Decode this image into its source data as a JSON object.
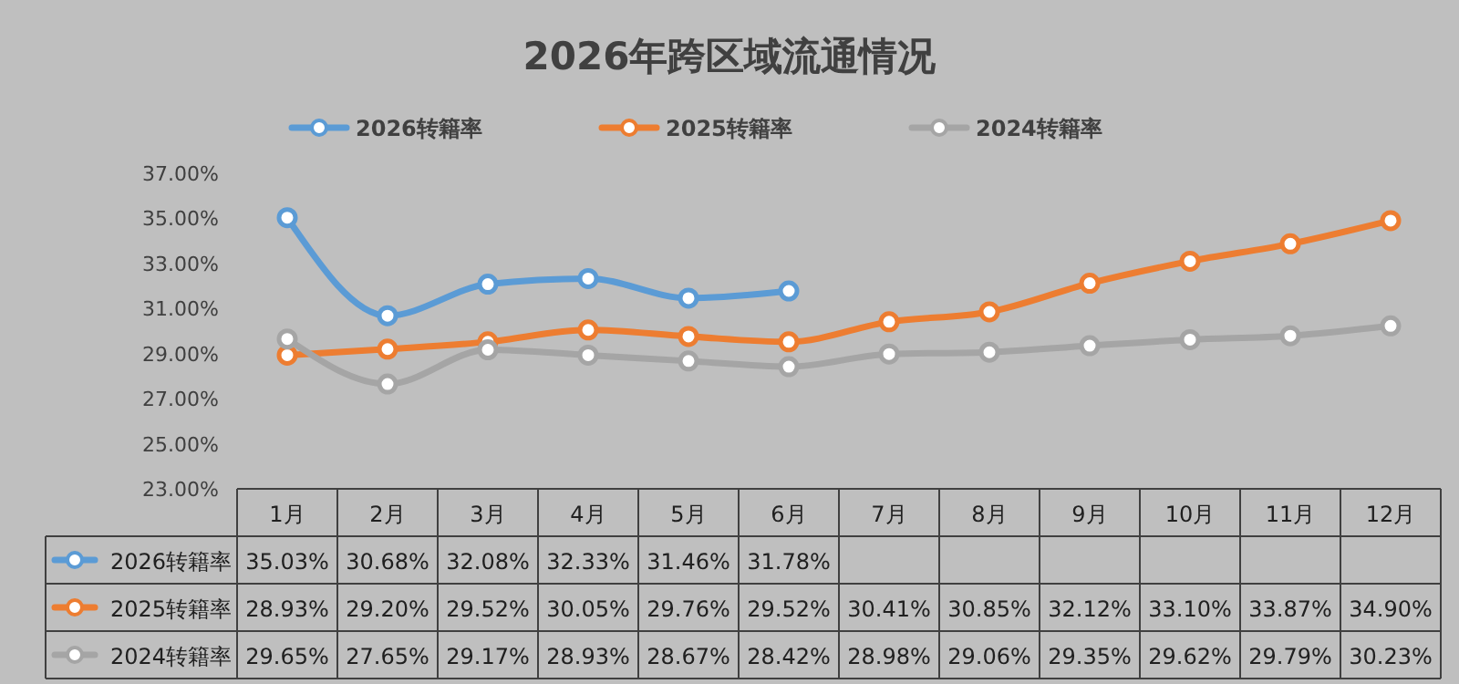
{
  "chart_data": {
    "type": "line",
    "title": "2026年跨区域流通情况",
    "categories": [
      "1月",
      "2月",
      "3月",
      "4月",
      "5月",
      "6月",
      "7月",
      "8月",
      "9月",
      "10月",
      "11月",
      "12月"
    ],
    "series": [
      {
        "name": "2026转籍率",
        "color": "#5b9bd5",
        "values": [
          35.03,
          30.68,
          32.08,
          32.33,
          31.46,
          31.78,
          null,
          null,
          null,
          null,
          null,
          null
        ],
        "value_labels": [
          "35.03%",
          "30.68%",
          "32.08%",
          "32.33%",
          "31.46%",
          "31.78%",
          null,
          null,
          null,
          null,
          null,
          null
        ]
      },
      {
        "name": "2025转籍率",
        "color": "#ed7d31",
        "values": [
          28.93,
          29.2,
          29.52,
          30.05,
          29.76,
          29.52,
          30.41,
          30.85,
          32.12,
          33.1,
          33.87,
          34.9
        ],
        "value_labels": [
          "28.93%",
          "29.20%",
          "29.52%",
          "30.05%",
          "29.76%",
          "29.52%",
          "30.41%",
          "30.85%",
          "32.12%",
          "33.10%",
          "33.87%",
          "34.90%"
        ]
      },
      {
        "name": "2024转籍率",
        "color": "#a5a5a5",
        "values": [
          29.65,
          27.65,
          29.17,
          28.93,
          28.67,
          28.42,
          28.98,
          29.06,
          29.35,
          29.62,
          29.79,
          30.23
        ],
        "value_labels": [
          "29.65%",
          "27.65%",
          "29.17%",
          "28.93%",
          "28.67%",
          "28.42%",
          "28.98%",
          "29.06%",
          "29.35%",
          "29.62%",
          "29.79%",
          "30.23%"
        ]
      }
    ],
    "ylim": [
      23,
      37
    ],
    "yticks": [
      {
        "value": 23,
        "label": "23.00%"
      },
      {
        "value": 25,
        "label": "25.00%"
      },
      {
        "value": 27,
        "label": "27.00%"
      },
      {
        "value": 29,
        "label": "29.00%"
      },
      {
        "value": 31,
        "label": "31.00%"
      },
      {
        "value": 33,
        "label": "33.00%"
      },
      {
        "value": 35,
        "label": "35.00%"
      },
      {
        "value": 37,
        "label": "37.00%"
      }
    ],
    "grid": false,
    "legend": "top",
    "marker": "circle",
    "line_style": "solid"
  }
}
